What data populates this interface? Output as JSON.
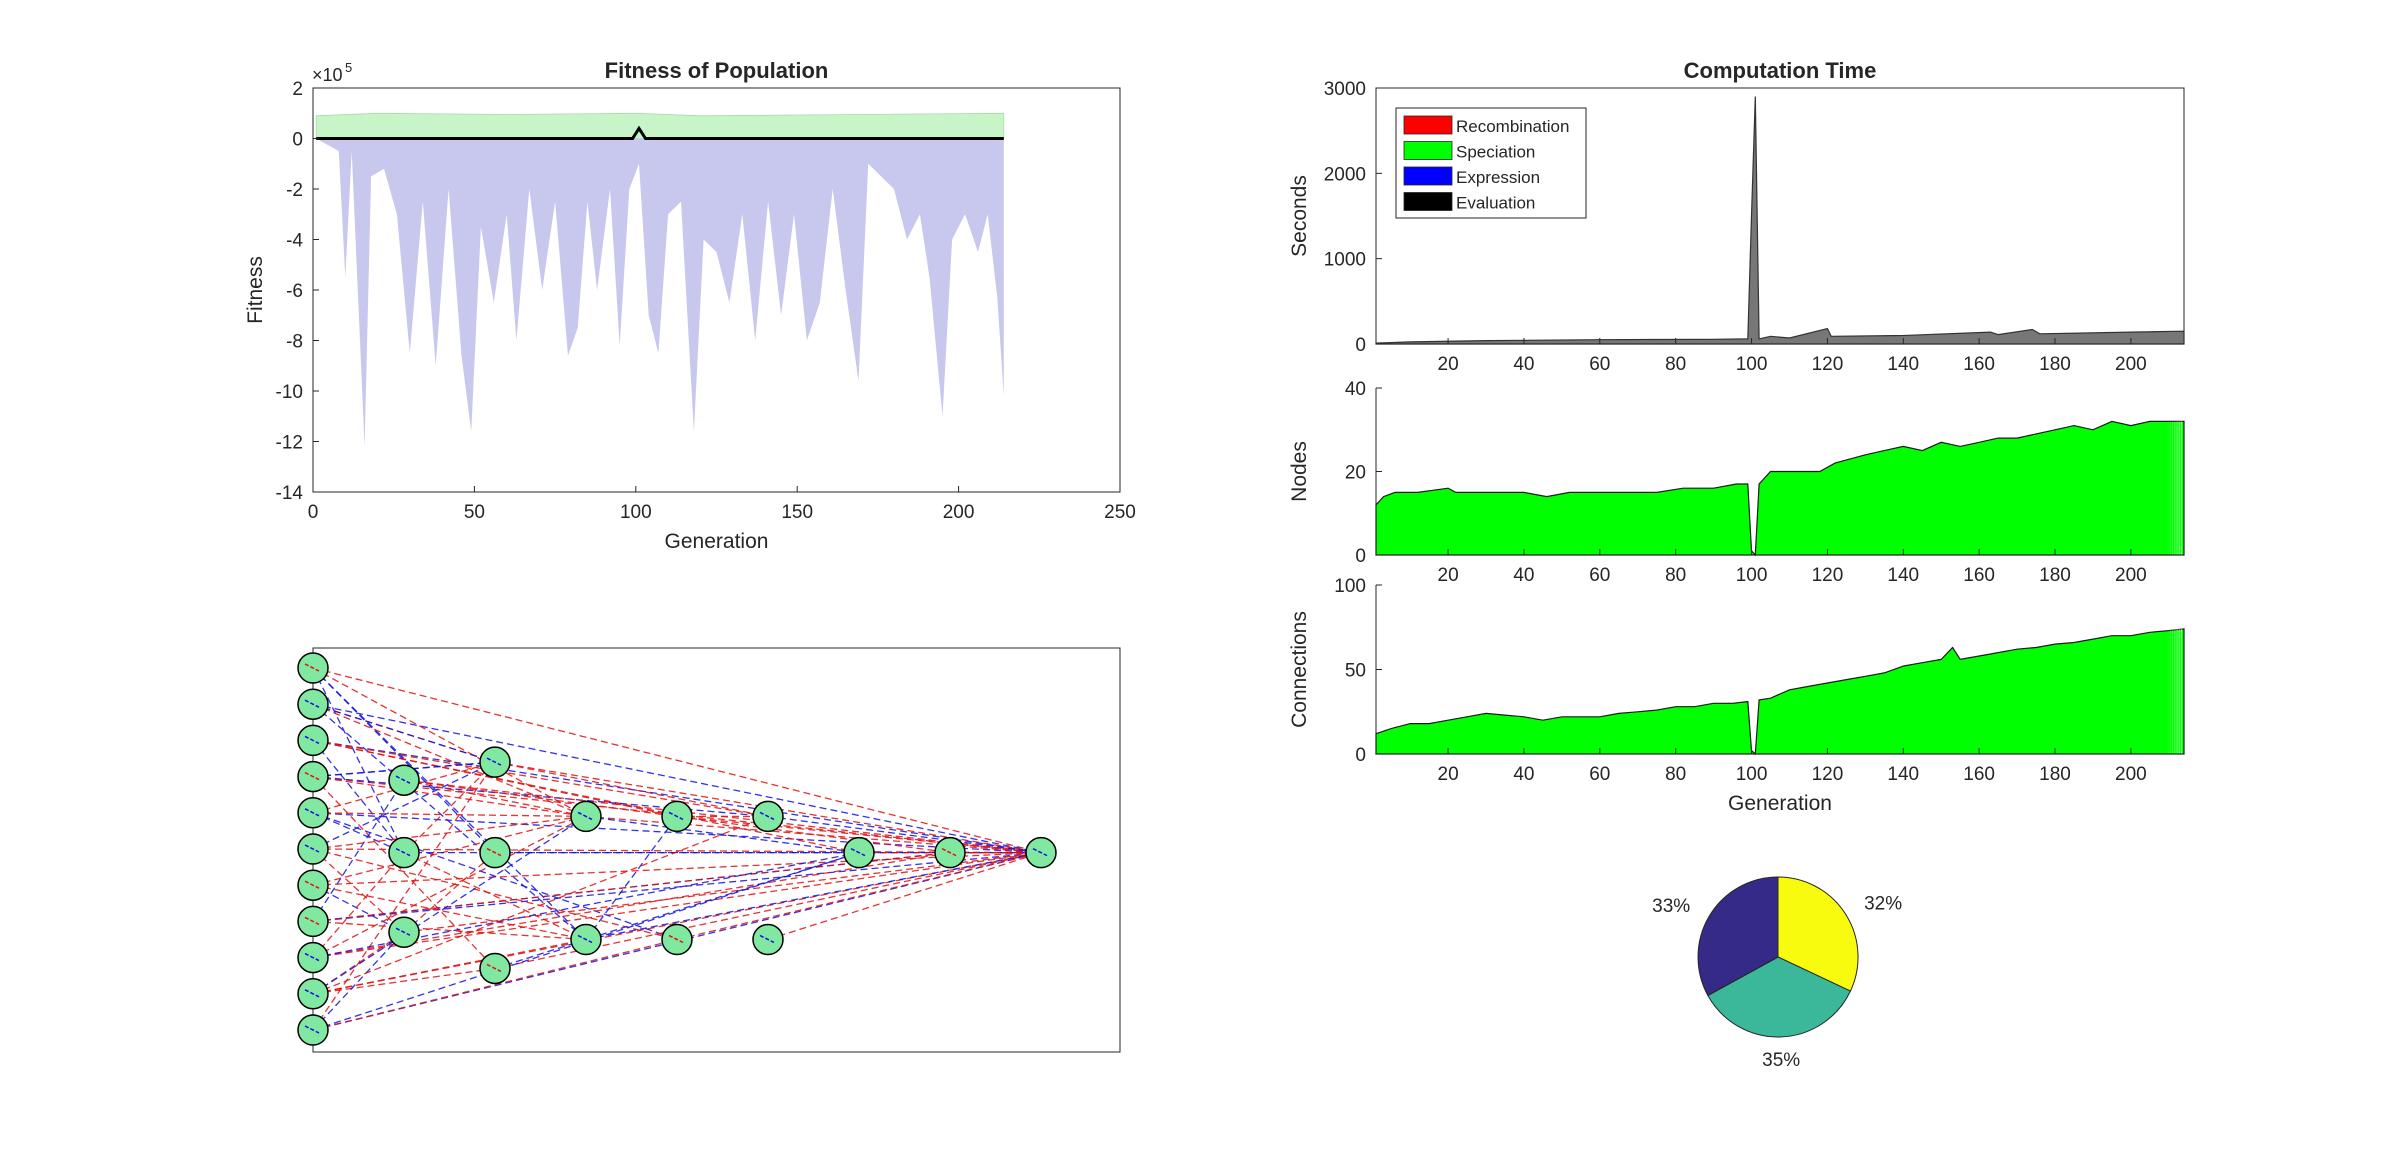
{
  "colors": {
    "fitness_best": "#c8f5c8",
    "fitness_mean": "#c8c8ee",
    "fitness_line": "#000000",
    "recombination": "#ff0000",
    "speciation": "#00ff00",
    "expression": "#0000ff",
    "evaluation": "#000000",
    "comp_area": "#777777",
    "node_fill": "#80e8a0",
    "edge_excitatory": "#e01010",
    "edge_inhibitory": "#1010e0",
    "pie_yellow": "#f9fb0e",
    "pie_teal": "#3bb89a",
    "pie_navy": "#352a87"
  },
  "chart_data": [
    {
      "id": "fitness",
      "type": "area",
      "title": "Fitness of Population",
      "xlabel": "Generation",
      "ylabel": "Fitness",
      "exponent_label": "×10",
      "exponent_power": "5",
      "xlim": [
        0,
        250
      ],
      "ylim": [
        -14,
        2
      ],
      "xticks": [
        "0",
        "50",
        "100",
        "150",
        "200",
        "250"
      ],
      "yticks": [
        "2",
        "0",
        "-2",
        "-4",
        "-6",
        "-8",
        "-10",
        "-12",
        "-14"
      ],
      "grid": false,
      "generations": 214,
      "series": [
        {
          "values": [
            [
              1,
              0.9
            ],
            [
              20,
              1.0
            ],
            [
              60,
              0.95
            ],
            [
              100,
              1.0
            ],
            [
              120,
              0.9
            ],
            [
              170,
              0.95
            ],
            [
              214,
              1.0
            ]
          ]
        },
        {
          "values": [
            [
              1,
              0
            ],
            [
              8,
              -0.5
            ],
            [
              10,
              -5.5
            ],
            [
              12,
              -0.5
            ],
            [
              16,
              -12.2
            ],
            [
              18,
              -1.5
            ],
            [
              22,
              -1.2
            ],
            [
              26,
              -3.0
            ],
            [
              30,
              -8.5
            ],
            [
              34,
              -2.5
            ],
            [
              38,
              -9.0
            ],
            [
              42,
              -2.0
            ],
            [
              46,
              -8.6
            ],
            [
              49,
              -11.6
            ],
            [
              52,
              -3.5
            ],
            [
              56,
              -6.5
            ],
            [
              60,
              -3.0
            ],
            [
              63,
              -8.0
            ],
            [
              67,
              -2.0
            ],
            [
              71,
              -6.0
            ],
            [
              75,
              -2.5
            ],
            [
              79,
              -8.6
            ],
            [
              82,
              -7.5
            ],
            [
              85,
              -2.5
            ],
            [
              88,
              -6.0
            ],
            [
              92,
              -2.0
            ],
            [
              95,
              -8.2
            ],
            [
              98,
              -2.0
            ],
            [
              101,
              -1.0
            ],
            [
              104,
              -7.0
            ],
            [
              107,
              -8.5
            ],
            [
              110,
              -3.0
            ],
            [
              114,
              -2.5
            ],
            [
              118,
              -11.6
            ],
            [
              121,
              -4.0
            ],
            [
              125,
              -4.5
            ],
            [
              129,
              -6.5
            ],
            [
              133,
              -3.0
            ],
            [
              137,
              -8.0
            ],
            [
              141,
              -2.5
            ],
            [
              145,
              -7.0
            ],
            [
              149,
              -3.0
            ],
            [
              153,
              -8.0
            ],
            [
              157,
              -6.5
            ],
            [
              161,
              -2.0
            ],
            [
              165,
              -6.0
            ],
            [
              169,
              -9.6
            ],
            [
              172,
              -1.0
            ],
            [
              176,
              -1.5
            ],
            [
              180,
              -2.0
            ],
            [
              184,
              -4.0
            ],
            [
              188,
              -3.0
            ],
            [
              191,
              -5.5
            ],
            [
              195,
              -11.0
            ],
            [
              198,
              -4.0
            ],
            [
              202,
              -3.0
            ],
            [
              206,
              -4.5
            ],
            [
              209,
              -3.0
            ],
            [
              212,
              -6.3
            ],
            [
              214,
              -10.2
            ]
          ]
        },
        {
          "values": [
            [
              1,
              0
            ],
            [
              99,
              0
            ],
            [
              101,
              0.4
            ],
            [
              103,
              0
            ],
            [
              214,
              0
            ]
          ]
        }
      ]
    },
    {
      "id": "network",
      "type": "diagram",
      "input_nodes": 11,
      "hidden_nodes": [
        [
          1,
          6.9
        ],
        [
          1,
          4.9
        ],
        [
          1,
          2.7
        ],
        [
          2,
          7.4
        ],
        [
          2,
          4.9
        ],
        [
          2,
          1.7
        ],
        [
          3,
          5.9
        ],
        [
          3,
          2.5
        ],
        [
          4,
          5.9
        ],
        [
          4,
          2.5
        ],
        [
          5,
          5.9
        ],
        [
          5,
          2.5
        ],
        [
          6,
          4.9
        ],
        [
          7,
          4.9
        ]
      ],
      "output_node": [
        8,
        4.9
      ]
    },
    {
      "id": "computation_time",
      "type": "area",
      "title": "Computation Time",
      "ylabel": "Seconds",
      "xlim": [
        1,
        214
      ],
      "ylim": [
        0,
        3000
      ],
      "xticks": [
        "20",
        "40",
        "60",
        "80",
        "100",
        "120",
        "140",
        "160",
        "180",
        "200"
      ],
      "yticks": [
        "3000",
        "2000",
        "1000",
        "0"
      ],
      "legend_position": "top-left",
      "legend": [
        "Recombination",
        "Speciation",
        "Expression",
        "Evaluation"
      ],
      "series": [
        {
          "values": [
            [
              1,
              10
            ],
            [
              10,
              25
            ],
            [
              30,
              40
            ],
            [
              60,
              50
            ],
            [
              90,
              55
            ],
            [
              99,
              60
            ],
            [
              100,
              1500
            ],
            [
              101,
              2900
            ],
            [
              102,
              60
            ],
            [
              105,
              90
            ],
            [
              110,
              70
            ],
            [
              120,
              180
            ],
            [
              121,
              90
            ],
            [
              140,
              100
            ],
            [
              163,
              140
            ],
            [
              165,
              110
            ],
            [
              174,
              170
            ],
            [
              176,
              120
            ],
            [
              200,
              140
            ],
            [
              214,
              150
            ]
          ]
        }
      ]
    },
    {
      "id": "nodes",
      "type": "area",
      "ylabel": "Nodes",
      "xlim": [
        1,
        214
      ],
      "ylim": [
        0,
        40
      ],
      "xticks": [
        "20",
        "40",
        "60",
        "80",
        "100",
        "120",
        "140",
        "160",
        "180",
        "200"
      ],
      "yticks": [
        "40",
        "20",
        "0"
      ],
      "series": [
        {
          "values": [
            [
              1,
              12
            ],
            [
              3,
              14
            ],
            [
              6,
              15
            ],
            [
              12,
              15
            ],
            [
              20,
              16
            ],
            [
              22,
              15
            ],
            [
              40,
              15
            ],
            [
              46,
              14
            ],
            [
              52,
              15
            ],
            [
              60,
              15
            ],
            [
              75,
              15
            ],
            [
              82,
              16
            ],
            [
              90,
              16
            ],
            [
              96,
              17
            ],
            [
              99,
              17
            ],
            [
              100,
              1
            ],
            [
              101,
              0
            ],
            [
              102,
              17
            ],
            [
              105,
              20
            ],
            [
              118,
              20
            ],
            [
              122,
              22
            ],
            [
              130,
              24
            ],
            [
              135,
              25
            ],
            [
              140,
              26
            ],
            [
              145,
              25
            ],
            [
              150,
              27
            ],
            [
              155,
              26
            ],
            [
              160,
              27
            ],
            [
              165,
              28
            ],
            [
              170,
              28
            ],
            [
              175,
              29
            ],
            [
              180,
              30
            ],
            [
              185,
              31
            ],
            [
              190,
              30
            ],
            [
              195,
              32
            ],
            [
              200,
              31
            ],
            [
              205,
              32
            ],
            [
              214,
              32
            ]
          ]
        }
      ]
    },
    {
      "id": "connections",
      "type": "area",
      "ylabel": "Connections",
      "xlabel": "Generation",
      "xlim": [
        1,
        214
      ],
      "ylim": [
        0,
        100
      ],
      "xticks": [
        "20",
        "40",
        "60",
        "80",
        "100",
        "120",
        "140",
        "160",
        "180",
        "200"
      ],
      "yticks": [
        "100",
        "50",
        "0"
      ],
      "series": [
        {
          "values": [
            [
              1,
              12
            ],
            [
              5,
              15
            ],
            [
              10,
              18
            ],
            [
              15,
              18
            ],
            [
              20,
              20
            ],
            [
              25,
              22
            ],
            [
              30,
              24
            ],
            [
              35,
              23
            ],
            [
              40,
              22
            ],
            [
              45,
              20
            ],
            [
              50,
              22
            ],
            [
              55,
              22
            ],
            [
              60,
              22
            ],
            [
              65,
              24
            ],
            [
              70,
              25
            ],
            [
              75,
              26
            ],
            [
              80,
              28
            ],
            [
              85,
              28
            ],
            [
              90,
              30
            ],
            [
              95,
              30
            ],
            [
              99,
              31
            ],
            [
              100,
              2
            ],
            [
              101,
              0
            ],
            [
              102,
              32
            ],
            [
              105,
              33
            ],
            [
              110,
              38
            ],
            [
              115,
              40
            ],
            [
              120,
              42
            ],
            [
              125,
              44
            ],
            [
              130,
              46
            ],
            [
              135,
              48
            ],
            [
              140,
              52
            ],
            [
              145,
              54
            ],
            [
              150,
              56
            ],
            [
              153,
              63
            ],
            [
              155,
              56
            ],
            [
              160,
              58
            ],
            [
              165,
              60
            ],
            [
              170,
              62
            ],
            [
              175,
              63
            ],
            [
              180,
              65
            ],
            [
              185,
              66
            ],
            [
              190,
              68
            ],
            [
              195,
              70
            ],
            [
              200,
              70
            ],
            [
              205,
              72
            ],
            [
              210,
              73
            ],
            [
              214,
              74
            ]
          ]
        }
      ]
    },
    {
      "id": "time_share",
      "type": "pie",
      "slices": [
        {
          "label": "32%",
          "value": 32,
          "color_key": "pie_yellow"
        },
        {
          "label": "35%",
          "value": 35,
          "color_key": "pie_teal"
        },
        {
          "label": "33%",
          "value": 33,
          "color_key": "pie_navy"
        }
      ]
    }
  ]
}
